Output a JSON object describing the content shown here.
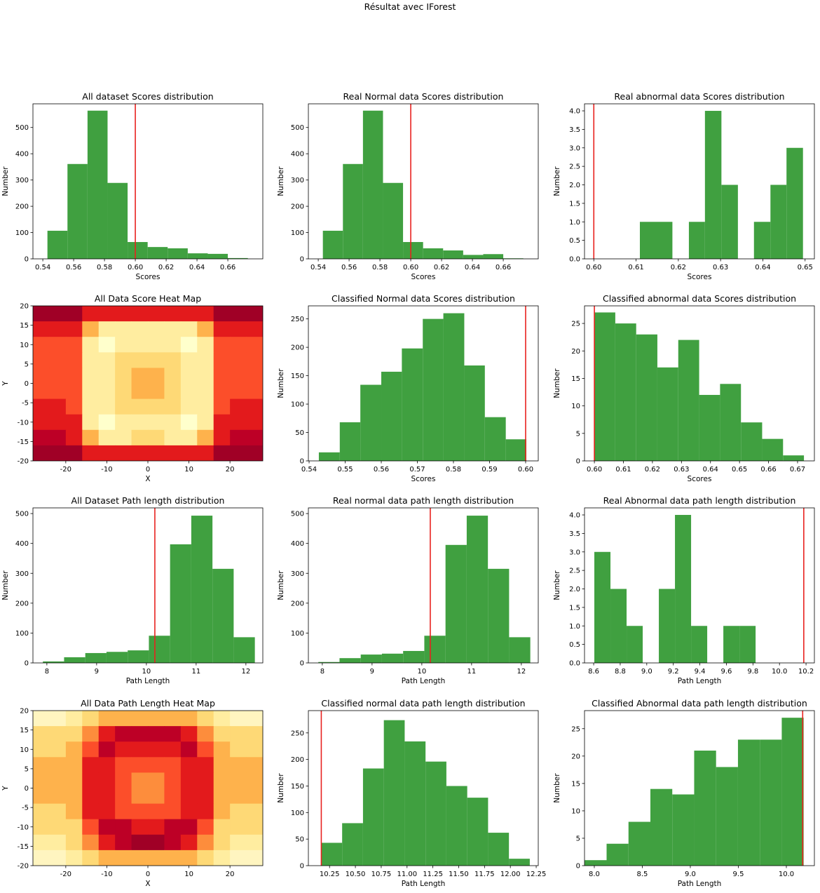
{
  "title": "Résultat avec IForest",
  "chart_data": [
    {
      "type": "histogram",
      "title": "All dataset Scores distribution",
      "xlabel": "Scores",
      "ylabel": "Number",
      "bins": [
        0.543,
        0.556,
        0.569,
        0.582,
        0.595,
        0.608,
        0.621,
        0.634,
        0.647,
        0.66,
        0.673
      ],
      "values": [
        107,
        361,
        564,
        289,
        64,
        45,
        40,
        21,
        19,
        3
      ],
      "color": "#40a040",
      "vline": 0.6,
      "vline_color": "#e8221f",
      "xlim": [
        0.5336,
        0.6827
      ],
      "ylim": [
        0,
        590
      ],
      "xticks": [
        0.54,
        0.56,
        0.58,
        {
          "value": 0.6,
          "label": "0.60"
        },
        0.62,
        0.64,
        0.66
      ],
      "yticks": [
        0,
        100,
        200,
        300,
        400,
        500
      ]
    },
    {
      "type": "histogram",
      "title": "Real Normal data Scores distribution",
      "xlabel": "Scores",
      "ylabel": "Number",
      "bins": [
        0.543,
        0.556,
        0.569,
        0.582,
        0.595,
        0.608,
        0.621,
        0.634,
        0.647,
        0.66,
        0.673
      ],
      "values": [
        107,
        361,
        564,
        289,
        64,
        40,
        32,
        15,
        18,
        2
      ],
      "color": "#40a040",
      "vline": 0.6,
      "vline_color": "#e8221f",
      "xlim": [
        0.5336,
        0.6827
      ],
      "ylim": [
        0,
        590
      ],
      "xticks": [
        0.54,
        0.56,
        0.58,
        {
          "value": 0.6,
          "label": "0.60"
        },
        0.62,
        0.64,
        0.66
      ],
      "yticks": [
        0,
        100,
        200,
        300,
        400,
        500
      ]
    },
    {
      "type": "histogram",
      "title": "Real abnormal data Scores distribution",
      "xlabel": "Scores",
      "ylabel": "Number",
      "bins": [
        0.6109,
        0.6148,
        0.6186,
        0.6225,
        0.6263,
        0.6302,
        0.6341,
        0.6379,
        0.6418,
        0.6456,
        0.6495
      ],
      "values": [
        1,
        1,
        0,
        1,
        4,
        2,
        0,
        1,
        2,
        3
      ],
      "color": "#40a040",
      "vline": 0.6,
      "vline_color": "#e8221f",
      "xlim": [
        0.5978,
        0.6522
      ],
      "ylim": [
        0,
        4.19
      ],
      "xticks": [
        {
          "value": 0.6,
          "label": "0.60"
        },
        0.61,
        0.62,
        0.63,
        0.64,
        0.65
      ],
      "yticks": [
        {
          "value": 0,
          "label": "0.0"
        },
        0.5,
        {
          "value": 1,
          "label": "1.0"
        },
        1.5,
        {
          "value": 2,
          "label": "2.0"
        },
        2.5,
        {
          "value": 3,
          "label": "3.0"
        },
        3.5,
        {
          "value": 4,
          "label": "4.0"
        }
      ]
    },
    {
      "type": "contour",
      "title": "All Data Score Heat Map",
      "xlabel": "X",
      "ylabel": "Y",
      "x": [
        -26,
        -22,
        -18,
        -14,
        -10,
        -6,
        -2,
        2,
        6,
        10,
        14,
        18,
        22,
        26
      ],
      "y": [
        18,
        14,
        10,
        6,
        2,
        -2,
        -6,
        -10,
        -14,
        -18
      ],
      "z": [
        [
          0.67,
          0.67,
          0.66,
          0.63,
          0.62,
          0.62,
          0.62,
          0.62,
          0.62,
          0.62,
          0.63,
          0.66,
          0.67,
          0.67
        ],
        [
          0.63,
          0.63,
          0.62,
          0.58,
          0.56,
          0.56,
          0.56,
          0.56,
          0.56,
          0.56,
          0.58,
          0.62,
          0.63,
          0.63
        ],
        [
          0.61,
          0.61,
          0.61,
          0.56,
          0.555,
          0.56,
          0.565,
          0.565,
          0.56,
          0.555,
          0.56,
          0.61,
          0.61,
          0.61
        ],
        [
          0.6,
          0.6,
          0.6,
          0.56,
          0.56,
          0.57,
          0.575,
          0.575,
          0.57,
          0.56,
          0.56,
          0.6,
          0.6,
          0.6
        ],
        [
          0.61,
          0.61,
          0.61,
          0.56,
          0.565,
          0.575,
          0.585,
          0.58,
          0.575,
          0.565,
          0.56,
          0.6,
          0.6,
          0.6
        ],
        [
          0.61,
          0.61,
          0.61,
          0.56,
          0.565,
          0.575,
          0.585,
          0.585,
          0.575,
          0.565,
          0.56,
          0.61,
          0.61,
          0.61
        ],
        [
          0.62,
          0.62,
          0.61,
          0.56,
          0.56,
          0.57,
          0.575,
          0.575,
          0.57,
          0.56,
          0.56,
          0.61,
          0.62,
          0.62
        ],
        [
          0.63,
          0.63,
          0.62,
          0.56,
          0.555,
          0.56,
          0.565,
          0.565,
          0.56,
          0.555,
          0.56,
          0.62,
          0.63,
          0.63
        ],
        [
          0.65,
          0.65,
          0.63,
          0.58,
          0.56,
          0.56,
          0.57,
          0.57,
          0.56,
          0.56,
          0.58,
          0.63,
          0.65,
          0.65
        ],
        [
          0.67,
          0.67,
          0.66,
          0.63,
          0.62,
          0.62,
          0.62,
          0.62,
          0.62,
          0.62,
          0.63,
          0.66,
          0.67,
          0.67
        ]
      ],
      "levels": [
        0.54,
        0.56,
        0.57,
        0.58,
        0.59,
        0.6,
        0.62,
        0.64,
        0.66,
        0.68
      ],
      "colors": [
        "#ffffcc",
        "#ffeda0",
        "#fed976",
        "#feb24c",
        "#fd8d3c",
        "#fc4e2a",
        "#e31a1c",
        "#bd0026",
        "#a00026"
      ],
      "xlim": [
        -28,
        28
      ],
      "ylim": [
        -20,
        20
      ],
      "xticks": [
        -20,
        -10,
        0,
        10,
        20
      ],
      "yticks": [
        -20,
        -15,
        -10,
        -5,
        0,
        5,
        10,
        15,
        20
      ]
    },
    {
      "type": "histogram",
      "title": "Classified Normal data Scores distribution",
      "xlabel": "Scores",
      "ylabel": "Number",
      "bins": [
        0.5427,
        0.5485,
        0.5542,
        0.56,
        0.5657,
        0.5715,
        0.5772,
        0.583,
        0.5887,
        0.5945,
        0.6002
      ],
      "values": [
        15,
        68,
        134,
        157,
        198,
        250,
        260,
        168,
        77,
        38
      ],
      "color": "#40a040",
      "vline": 0.6,
      "vline_color": "#e8221f",
      "xlim": [
        0.5398,
        0.6035
      ],
      "ylim": [
        0,
        273
      ],
      "xticks": [
        0.54,
        0.55,
        0.56,
        0.57,
        0.58,
        0.59,
        {
          "value": 0.6,
          "label": "0.60"
        }
      ],
      "yticks": [
        0,
        50,
        100,
        150,
        200,
        250
      ]
    },
    {
      "type": "histogram",
      "title": "Classified abnormal data Scores distribution",
      "xlabel": "Scores",
      "ylabel": "Number",
      "bins": [
        0.6,
        0.6072,
        0.6144,
        0.6217,
        0.6289,
        0.6361,
        0.6433,
        0.6505,
        0.6578,
        0.665,
        0.6722
      ],
      "values": [
        27,
        25,
        23,
        17,
        22,
        12,
        14,
        7,
        4,
        1
      ],
      "color": "#40a040",
      "vline": 0.6,
      "vline_color": "#e8221f",
      "xlim": [
        0.5966,
        0.6758
      ],
      "ylim": [
        0,
        28.2
      ],
      "xticks": [
        {
          "value": 0.6,
          "label": "0.60"
        },
        0.61,
        0.62,
        0.63,
        0.64,
        0.65,
        0.66,
        0.67
      ],
      "yticks": [
        0,
        5,
        10,
        15,
        20,
        25
      ]
    },
    {
      "type": "histogram",
      "title": "All Dataset Path length distribution",
      "xlabel": "Path Length",
      "ylabel": "Number",
      "bins": [
        7.92,
        8.346,
        8.772,
        9.198,
        9.624,
        10.05,
        10.476,
        10.902,
        11.328,
        11.754,
        12.18
      ],
      "values": [
        5,
        19,
        33,
        37,
        42,
        91,
        397,
        493,
        315,
        86
      ],
      "color": "#40a040",
      "vline": 10.17,
      "vline_color": "#e8221f",
      "xlim": [
        7.72,
        12.34
      ],
      "ylim": [
        0,
        519
      ],
      "xticks": [
        8,
        9,
        10,
        11,
        12
      ],
      "yticks": [
        0,
        100,
        200,
        300,
        400,
        500
      ]
    },
    {
      "type": "histogram",
      "title": "Real normal data path length distribution",
      "xlabel": "Path Length",
      "ylabel": "Number",
      "bins": [
        7.92,
        8.346,
        8.772,
        9.198,
        9.624,
        10.05,
        10.476,
        10.902,
        11.328,
        11.754,
        12.18
      ],
      "values": [
        3,
        16,
        28,
        31,
        40,
        91,
        395,
        493,
        315,
        86
      ],
      "color": "#40a040",
      "vline": 10.17,
      "vline_color": "#e8221f",
      "xlim": [
        7.72,
        12.34
      ],
      "ylim": [
        0,
        519
      ],
      "xticks": [
        8,
        9,
        10,
        11,
        12
      ],
      "yticks": [
        0,
        100,
        200,
        300,
        400,
        500
      ]
    },
    {
      "type": "histogram",
      "title": "Real Abnormal data path length distribution",
      "xlabel": "Path Length",
      "ylabel": "Number",
      "bins": [
        8.605,
        8.7265,
        8.848,
        8.9695,
        9.091,
        9.2125,
        9.334,
        9.4555,
        9.577,
        9.6985,
        9.82
      ],
      "values": [
        3,
        2,
        1,
        0,
        2,
        4,
        1,
        0,
        1,
        1
      ],
      "color": "#40a040",
      "vline": 10.183,
      "vline_color": "#e8221f",
      "xlim": [
        8.531,
        10.263
      ],
      "ylim": [
        0,
        4.19
      ],
      "xticks": [
        8.6,
        8.8,
        {
          "value": 9,
          "label": "9.0"
        },
        9.2,
        9.4,
        9.6,
        9.8,
        {
          "value": 10,
          "label": "10.0"
        },
        10.2
      ],
      "yticks": [
        {
          "value": 0,
          "label": "0.0"
        },
        0.5,
        {
          "value": 1,
          "label": "1.0"
        },
        1.5,
        {
          "value": 2,
          "label": "2.0"
        },
        2.5,
        {
          "value": 3,
          "label": "3.0"
        },
        3.5,
        {
          "value": 4,
          "label": "4.0"
        }
      ]
    },
    {
      "type": "contour",
      "title": "All Data Path Length Heat Map",
      "xlabel": "X",
      "ylabel": "Y",
      "x": [
        -26,
        -22,
        -18,
        -14,
        -10,
        -6,
        -2,
        2,
        6,
        10,
        14,
        18,
        22,
        26
      ],
      "y": [
        18,
        14,
        10,
        6,
        2,
        -2,
        -6,
        -10,
        -14,
        -18
      ],
      "z": [
        [
          9.3,
          9.3,
          9.8,
          10.3,
          10.5,
          10.5,
          10.5,
          10.5,
          10.5,
          10.5,
          10.3,
          9.8,
          9.3,
          9.3
        ],
        [
          10.2,
          10.2,
          10.3,
          11.1,
          11.5,
          11.7,
          11.7,
          11.7,
          11.7,
          11.5,
          11.1,
          10.3,
          10.2,
          10.2
        ],
        [
          10.3,
          10.3,
          10.5,
          11.3,
          11.7,
          11.5,
          11.4,
          11.4,
          11.5,
          11.7,
          11.3,
          10.5,
          10.3,
          10.3
        ],
        [
          10.7,
          10.7,
          10.7,
          11.5,
          11.5,
          11.3,
          11.2,
          11.2,
          11.3,
          11.5,
          11.5,
          10.7,
          10.7,
          10.7
        ],
        [
          10.5,
          10.5,
          10.6,
          11.5,
          11.4,
          11.2,
          11.0,
          11.1,
          11.2,
          11.4,
          11.5,
          10.6,
          10.5,
          10.5
        ],
        [
          10.5,
          10.5,
          10.6,
          11.5,
          11.4,
          11.2,
          11.0,
          11.0,
          11.2,
          11.4,
          11.5,
          10.6,
          10.5,
          10.5
        ],
        [
          10.3,
          10.3,
          10.5,
          11.5,
          11.5,
          11.3,
          11.2,
          11.2,
          11.3,
          11.5,
          11.5,
          10.5,
          10.3,
          10.3
        ],
        [
          10.2,
          10.2,
          10.4,
          11.3,
          11.7,
          11.6,
          11.5,
          11.5,
          11.6,
          11.7,
          11.3,
          10.4,
          10.2,
          10.2
        ],
        [
          9.8,
          9.8,
          10.1,
          11.1,
          11.5,
          11.7,
          11.8,
          11.8,
          11.7,
          11.5,
          11.1,
          10.1,
          9.8,
          9.8
        ],
        [
          9.3,
          9.3,
          9.8,
          10.3,
          10.5,
          10.5,
          10.5,
          10.5,
          10.5,
          10.5,
          10.3,
          9.8,
          9.3,
          9.3
        ]
      ],
      "levels": [
        9.0,
        9.5,
        10.0,
        10.5,
        11.0,
        11.2,
        11.4,
        11.6,
        11.8,
        12.0
      ],
      "colors": [
        "#fff5c0",
        "#ffeda0",
        "#fed976",
        "#feb24c",
        "#fd8d3c",
        "#fc4e2a",
        "#e31a1c",
        "#bd0026",
        "#a00026"
      ],
      "xlim": [
        -28,
        28
      ],
      "ylim": [
        -20,
        20
      ],
      "xticks": [
        -20,
        -10,
        0,
        10,
        20
      ],
      "yticks": [
        -20,
        -15,
        -10,
        -5,
        0,
        5,
        10,
        15,
        20
      ]
    },
    {
      "type": "histogram",
      "title": "Classified normal data path length distribution",
      "xlabel": "Path Length",
      "ylabel": "Number",
      "bins": [
        10.17,
        10.3718,
        10.5736,
        10.7754,
        10.9772,
        11.179,
        11.3808,
        11.5826,
        11.7844,
        11.9862,
        12.188
      ],
      "values": [
        43,
        80,
        183,
        274,
        234,
        196,
        150,
        128,
        62,
        13
      ],
      "color": "#40a040",
      "vline": 10.17,
      "vline_color": "#e8221f",
      "xlim": [
        10.045,
        12.27
      ],
      "ylim": [
        0,
        292
      ],
      "xticks": [
        10.25,
        {
          "value": 10.5,
          "label": "10.50"
        },
        10.75,
        {
          "value": 11,
          "label": "11.00"
        },
        11.25,
        {
          "value": 11.5,
          "label": "11.50"
        },
        11.75,
        {
          "value": 12,
          "label": "12.00"
        },
        12.25
      ],
      "yticks": [
        0,
        50,
        100,
        150,
        200,
        250
      ]
    },
    {
      "type": "histogram",
      "title": "Classified Abnormal data path length distribution",
      "xlabel": "Path Length",
      "ylabel": "Number",
      "bins": [
        7.9,
        8.128,
        8.356,
        8.584,
        8.812,
        9.04,
        9.268,
        9.496,
        9.724,
        9.952,
        10.18
      ],
      "values": [
        1,
        4,
        8,
        14,
        13,
        21,
        18,
        23,
        23,
        27
      ],
      "color": "#40a040",
      "vline": 10.17,
      "vline_color": "#e8221f",
      "xlim": [
        7.898,
        10.292
      ],
      "ylim": [
        0,
        28.3
      ],
      "xticks": [
        {
          "value": 8,
          "label": "8.0"
        },
        8.5,
        {
          "value": 9,
          "label": "9.0"
        },
        9.5,
        {
          "value": 10,
          "label": "10.0"
        }
      ],
      "yticks": [
        0,
        5,
        10,
        15,
        20,
        25
      ]
    }
  ]
}
